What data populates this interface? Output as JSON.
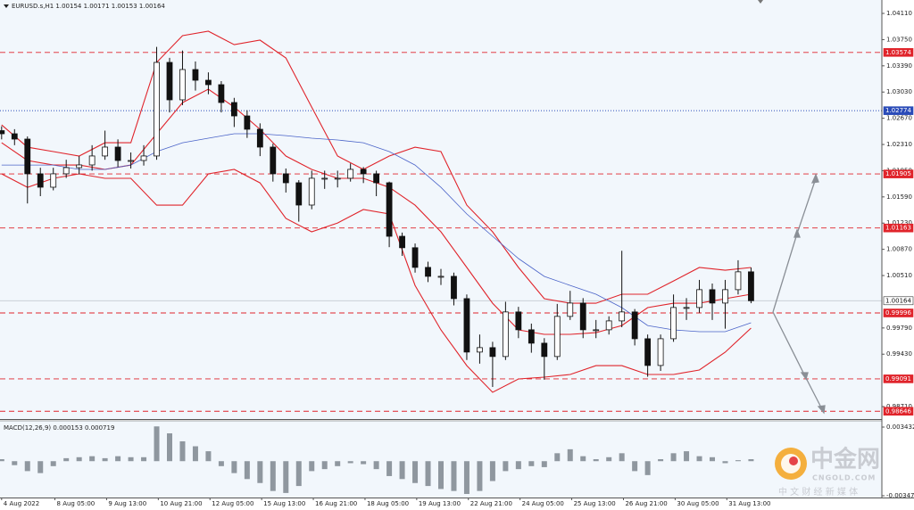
{
  "chart_data": {
    "type": "candlestick",
    "title": "EURUSD.s,H1  1.00154 1.00171 1.00153 1.00164",
    "x": [
      0,
      8,
      16,
      24,
      32,
      40,
      48,
      56,
      64,
      72,
      80,
      88,
      96,
      104,
      112,
      120,
      128,
      136,
      144,
      152,
      160,
      168,
      176,
      184,
      192,
      200,
      208,
      216,
      224,
      232,
      240,
      248,
      256,
      264,
      272,
      280,
      288,
      296,
      304,
      312,
      320,
      328,
      336,
      344,
      352,
      360,
      368,
      376,
      384,
      392,
      400,
      408,
      416,
      424,
      432,
      440,
      448,
      456,
      464
    ],
    "ohlc": [
      [
        1.025,
        1.0256,
        1.0238,
        1.02457
      ],
      [
        1.02457,
        1.0252,
        1.023,
        1.02384
      ],
      [
        1.02384,
        1.0242,
        1.015,
        1.01907
      ],
      [
        1.01907,
        1.0199,
        1.016,
        1.01723
      ],
      [
        1.01723,
        1.0199,
        1.0168,
        1.01907
      ],
      [
        1.01907,
        1.021,
        1.0185,
        1.01992
      ],
      [
        1.01992,
        1.0215,
        1.019,
        1.02029
      ],
      [
        1.02029,
        1.023,
        1.0195,
        1.02152
      ],
      [
        1.02152,
        1.025,
        1.021,
        1.02274
      ],
      [
        1.02274,
        1.0238,
        1.02,
        1.0209
      ],
      [
        1.0209,
        1.022,
        1.0198,
        1.0209
      ],
      [
        1.0209,
        1.023,
        1.0202,
        1.02152
      ],
      [
        1.02152,
        1.0365,
        1.021,
        1.03437
      ],
      [
        1.03437,
        1.035,
        1.0275,
        1.02923
      ],
      [
        1.02923,
        1.036,
        1.0285,
        1.03339
      ],
      [
        1.03339,
        1.0345,
        1.0305,
        1.03192
      ],
      [
        1.03192,
        1.033,
        1.03,
        1.03131
      ],
      [
        1.03131,
        1.0318,
        1.0275,
        1.02886
      ],
      [
        1.02886,
        1.0295,
        1.0255,
        1.02702
      ],
      [
        1.02702,
        1.0278,
        1.024,
        1.02519
      ],
      [
        1.02519,
        1.026,
        1.0215,
        1.02274
      ],
      [
        1.02274,
        1.0232,
        1.018,
        1.01907
      ],
      [
        1.01907,
        1.0198,
        1.0165,
        1.01784
      ],
      [
        1.01784,
        1.0182,
        1.0125,
        1.01478
      ],
      [
        1.01478,
        1.0195,
        1.0142,
        1.01846
      ],
      [
        1.01846,
        1.0195,
        1.017,
        1.01846
      ],
      [
        1.01846,
        1.0195,
        1.0172,
        1.01846
      ],
      [
        1.01846,
        1.0205,
        1.018,
        1.01968
      ],
      [
        1.01968,
        1.02,
        1.0178,
        1.01907
      ],
      [
        1.01907,
        1.0195,
        1.016,
        1.01784
      ],
      [
        1.01784,
        1.018,
        1.009,
        1.01049
      ],
      [
        1.01049,
        1.011,
        1.0078,
        1.00892
      ],
      [
        1.00892,
        1.0095,
        1.0055,
        1.00622
      ],
      [
        1.00622,
        1.007,
        1.0042,
        1.00499
      ],
      [
        1.00499,
        1.006,
        1.0038,
        1.00499
      ],
      [
        1.00499,
        1.0055,
        1.001,
        1.00193
      ],
      [
        1.00193,
        1.0025,
        0.9935,
        0.99459
      ],
      [
        0.99459,
        0.997,
        0.993,
        0.9952
      ],
      [
        0.9952,
        0.996,
        0.9898,
        0.99398
      ],
      [
        0.99398,
        1.0015,
        0.9935,
        1.0001
      ],
      [
        1.0001,
        1.0008,
        0.9965,
        0.99765
      ],
      [
        0.99765,
        0.9985,
        0.9945,
        0.99581
      ],
      [
        0.99581,
        0.9965,
        0.9908,
        0.99398
      ],
      [
        0.99398,
        1.0012,
        0.9935,
        0.99949
      ],
      [
        0.99949,
        1.003,
        0.999,
        1.00132
      ],
      [
        1.00132,
        1.002,
        0.9965,
        0.99765
      ],
      [
        0.99765,
        0.999,
        0.9965,
        0.99765
      ],
      [
        0.99765,
        0.9995,
        0.997,
        0.99887
      ],
      [
        0.99887,
        1.0085,
        0.998,
        1.0001
      ],
      [
        1.0001,
        1.0005,
        0.9955,
        0.99642
      ],
      [
        0.99642,
        0.997,
        0.9912,
        0.99275
      ],
      [
        0.99275,
        0.997,
        0.992,
        0.99642
      ],
      [
        0.99642,
        1.0025,
        0.996,
        1.00071
      ],
      [
        1.00071,
        1.002,
        0.999,
        1.00071
      ],
      [
        1.00071,
        1.0045,
        1.0,
        1.00316
      ],
      [
        1.00316,
        1.004,
        0.999,
        1.00132
      ],
      [
        1.00132,
        1.0045,
        0.9978,
        1.00316
      ],
      [
        1.00316,
        1.0072,
        1.0025,
        1.00561
      ],
      [
        1.00561,
        1.0062,
        1.0013,
        1.00164
      ]
    ],
    "colors": {
      "up": "#ffffff",
      "down": "#111111",
      "wick": "#111111"
    },
    "xlim": [
      -1,
      545
    ],
    "xticks": [
      {
        "value": 0,
        "label": "4 Aug 2022"
      },
      {
        "value": 33,
        "label": "8 Aug 05:00"
      },
      {
        "value": 65,
        "label": "9 Aug 13:00"
      },
      {
        "value": 97,
        "label": "10 Aug 21:00"
      },
      {
        "value": 129,
        "label": "12 Aug 05:00"
      },
      {
        "value": 161,
        "label": "15 Aug 13:00"
      },
      {
        "value": 193,
        "label": "16 Aug 21:00"
      },
      {
        "value": 225,
        "label": "18 Aug 05:00"
      },
      {
        "value": 257,
        "label": "19 Aug 13:00"
      },
      {
        "value": 289,
        "label": "22 Aug 21:00"
      },
      {
        "value": 321,
        "label": "24 Aug 05:00"
      },
      {
        "value": 353,
        "label": "25 Aug 13:00"
      },
      {
        "value": 385,
        "label": "26 Aug 21:00"
      },
      {
        "value": 417,
        "label": "30 Aug 05:00"
      },
      {
        "value": 449,
        "label": "31 Aug 13:00"
      }
    ],
    "ylim": [
      0.98539,
      1.04294
    ],
    "yticks": [
      {
        "value": 1.0411,
        "label": "1.04110"
      },
      {
        "value": 1.0375,
        "label": "1.03750"
      },
      {
        "value": 1.0339,
        "label": "1.03390"
      },
      {
        "value": 1.0303,
        "label": "1.03030"
      },
      {
        "value": 1.0267,
        "label": "1.02670"
      },
      {
        "value": 1.0231,
        "label": "1.02310"
      },
      {
        "value": 1.0195,
        "label": "1.01950"
      },
      {
        "value": 1.0159,
        "label": "1.01590"
      },
      {
        "value": 1.0123,
        "label": "1.01230"
      },
      {
        "value": 1.0087,
        "label": "1.00870"
      },
      {
        "value": 1.0051,
        "label": "1.00510"
      },
      {
        "value": 0.9979,
        "label": "0.99790"
      },
      {
        "value": 0.9943,
        "label": "0.99430"
      },
      {
        "value": 0.9871,
        "label": "0.98710"
      }
    ],
    "levels": [
      {
        "value": 1.03574,
        "color": "#e0242b",
        "style": "dashed"
      },
      {
        "value": 1.02774,
        "color": "#2a4bb8",
        "style": "dotted"
      },
      {
        "value": 1.01905,
        "color": "#e0242b",
        "style": "dashed"
      },
      {
        "value": 1.01163,
        "color": "#e0242b",
        "style": "dashed"
      },
      {
        "value": 1.00164,
        "color": "#c4cad2",
        "style": "solid"
      },
      {
        "value": 0.99996,
        "color": "#e0242b",
        "style": "dashed"
      },
      {
        "value": 0.99091,
        "color": "#e0242b",
        "style": "dashed"
      },
      {
        "value": 0.98646,
        "color": "#e0242b",
        "style": "dashed"
      }
    ],
    "bands": {
      "x": [
        0,
        16,
        32,
        48,
        64,
        80,
        96,
        112,
        128,
        144,
        160,
        176,
        192,
        208,
        224,
        240,
        256,
        272,
        288,
        304,
        320,
        336,
        352,
        368,
        384,
        400,
        416,
        432,
        448,
        464
      ],
      "series": [
        {
          "color": "#e0242b",
          "values": [
            1.02579,
            1.02273,
            1.02212,
            1.02151,
            1.02334,
            1.02334,
            1.03437,
            1.03804,
            1.03865,
            1.03681,
            1.03743,
            1.03498,
            1.02824,
            1.02151,
            1.01967,
            1.02151,
            1.02273,
            1.02212,
            1.01477,
            1.0111,
            1.0062,
            1.00192,
            1.0013,
            1.0013,
            1.00253,
            1.00253,
            1.00436,
            1.0062,
            1.00583,
            1.0062
          ]
        },
        {
          "color": "#e0242b",
          "values": [
            1.02334,
            1.0209,
            1.02028,
            1.02028,
            1.01967,
            1.02028,
            1.02457,
            1.02885,
            1.03069,
            1.02824,
            1.02518,
            1.02151,
            1.01967,
            1.01845,
            1.01845,
            1.01722,
            1.01477,
            1.0111,
            1.0062,
            1.0013,
            0.99763,
            0.99702,
            0.99702,
            0.99726,
            0.99824,
            1.00069,
            1.0013,
            1.0013,
            1.00192,
            1.00253
          ]
        },
        {
          "color": "#e0242b",
          "values": [
            1.01906,
            1.01722,
            1.01845,
            1.01906,
            1.01845,
            1.01845,
            1.01477,
            1.01477,
            1.01906,
            1.01967,
            1.01783,
            1.01294,
            1.0111,
            1.01232,
            1.01416,
            1.01355,
            1.00375,
            0.99763,
            0.99273,
            0.98906,
            0.9909,
            0.99114,
            0.99151,
            0.99273,
            0.99273,
            0.99151,
            0.99151,
            0.99212,
            0.99457,
            0.99788
          ]
        },
        {
          "color": "#4a63c8",
          "values": [
            1.02028,
            1.02028,
            1.02028,
            1.01967,
            1.01967,
            1.02028,
            1.02212,
            1.02334,
            1.02396,
            1.02457,
            1.02457,
            1.02432,
            1.02396,
            1.02371,
            1.02334,
            1.02212,
            1.02028,
            1.01722,
            1.01355,
            1.01049,
            1.00743,
            1.00498,
            1.00375,
            1.00253,
            1.00069,
            0.99824,
            0.99763,
            0.99739,
            0.99739,
            0.99861
          ]
        }
      ]
    },
    "indicator": {
      "type": "histogram",
      "title": "MACD(12,26,9) 0.000153 0.000719",
      "color": "#8f979f",
      "values": [
        0.0002,
        -0.0004,
        -0.001,
        -0.0012,
        -0.0005,
        0.0003,
        0.0004,
        0.0005,
        0.0003,
        0.0005,
        0.0004,
        0.0004,
        0.0035,
        0.0028,
        0.002,
        0.0015,
        0.001,
        -0.0005,
        -0.0012,
        -0.0018,
        -0.0022,
        -0.003,
        -0.0032,
        -0.0025,
        -0.001,
        -0.0008,
        -0.0005,
        -0.0002,
        -0.0003,
        -0.0008,
        -0.0015,
        -0.0018,
        -0.0022,
        -0.0025,
        -0.0028,
        -0.003,
        -0.0033,
        -0.003,
        -0.002,
        -0.001,
        -0.0008,
        -0.0005,
        -0.0006,
        0.0008,
        0.0012,
        0.0005,
        0.0002,
        0.0004,
        0.0008,
        -0.001,
        -0.0014,
        0.0002,
        0.0008,
        0.001,
        0.0005,
        0.0004,
        -0.0002,
        0.0001,
        0.0002
      ],
      "ylim": [
        -0.003658,
        0.00406
      ],
      "yticks": [
        0.003432,
        -0.003478
      ]
    },
    "watermark": {
      "name": "中金网",
      "domain": "CNGOLD.COM",
      "tagline": "中 文 财 经 新 媒 体"
    }
  }
}
